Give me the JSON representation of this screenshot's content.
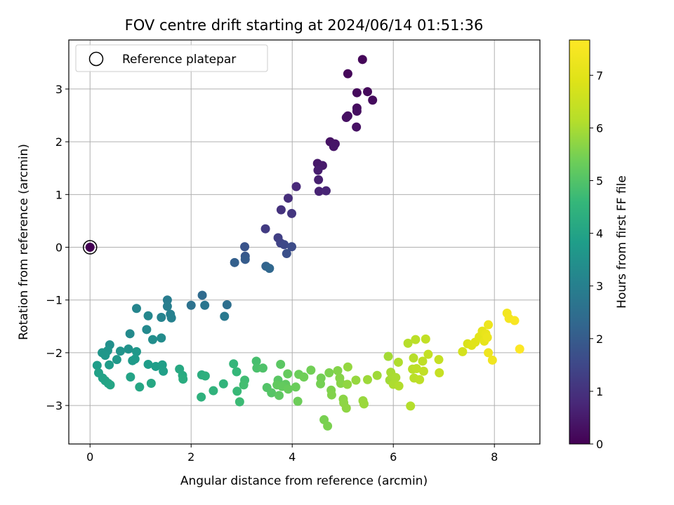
{
  "chart_data": {
    "type": "scatter",
    "title": "FOV centre drift starting at 2024/06/14 01:51:36",
    "xlabel": "Angular distance from reference (arcmin)",
    "ylabel": "Rotation from reference (arcmin)",
    "xlim": [
      -0.42,
      8.9
    ],
    "ylim": [
      -3.73,
      3.93
    ],
    "xticks": [
      0,
      2,
      4,
      6,
      8
    ],
    "yticks": [
      -3,
      -2,
      -1,
      0,
      1,
      2,
      3
    ],
    "grid": true,
    "legend": {
      "location": "upper-left",
      "entries": [
        "Reference platepar"
      ]
    },
    "reference_point": {
      "x": 0,
      "y": 0
    },
    "colorbar": {
      "label": "Hours from first FF file",
      "colormap": "viridis",
      "range": [
        0,
        7.67
      ],
      "ticks": [
        0,
        1,
        2,
        3,
        4,
        5,
        6,
        7
      ]
    },
    "series": [
      {
        "color_by": "hours",
        "points": [
          [
            5.39,
            3.56,
            0.1
          ],
          [
            5.1,
            3.29,
            0.12
          ],
          [
            5.49,
            2.95,
            0.15
          ],
          [
            5.28,
            2.93,
            0.17
          ],
          [
            5.59,
            2.79,
            0.2
          ],
          [
            5.28,
            2.64,
            0.22
          ],
          [
            5.28,
            2.58,
            0.25
          ],
          [
            5.1,
            2.49,
            0.27
          ],
          [
            5.07,
            2.46,
            0.3
          ],
          [
            5.27,
            2.28,
            0.32
          ],
          [
            4.75,
            2.0,
            0.35
          ],
          [
            4.85,
            1.96,
            0.38
          ],
          [
            4.82,
            1.91,
            0.4
          ],
          [
            4.5,
            1.59,
            0.45
          ],
          [
            4.6,
            1.55,
            0.5
          ],
          [
            4.51,
            1.46,
            0.55
          ],
          [
            4.52,
            1.28,
            0.6
          ],
          [
            4.53,
            1.06,
            0.65
          ],
          [
            4.67,
            1.07,
            0.7
          ],
          [
            4.08,
            1.15,
            0.8
          ],
          [
            3.92,
            0.93,
            0.9
          ],
          [
            3.78,
            0.71,
            1.0
          ],
          [
            3.99,
            0.64,
            1.1
          ],
          [
            3.47,
            0.35,
            1.2
          ],
          [
            3.72,
            0.18,
            1.3
          ],
          [
            3.77,
            0.08,
            1.4
          ],
          [
            3.84,
            0.05,
            1.5
          ],
          [
            3.99,
            0.01,
            1.6
          ],
          [
            3.89,
            -0.12,
            1.7
          ],
          [
            3.06,
            0.01,
            1.8
          ],
          [
            3.07,
            -0.17,
            1.9
          ],
          [
            3.07,
            -0.23,
            2.0
          ],
          [
            2.86,
            -0.29,
            2.1
          ],
          [
            3.48,
            -0.36,
            2.2
          ],
          [
            3.55,
            -0.4,
            2.3
          ],
          [
            2.22,
            -0.91,
            2.4
          ],
          [
            2.71,
            -1.09,
            2.5
          ],
          [
            2.0,
            -1.1,
            2.6
          ],
          [
            2.27,
            -1.1,
            2.7
          ],
          [
            2.66,
            -1.31,
            2.8
          ],
          [
            1.53,
            -1.0,
            2.9
          ],
          [
            1.53,
            -1.12,
            2.95
          ],
          [
            1.59,
            -1.27,
            3.0
          ],
          [
            1.61,
            -1.34,
            3.05
          ],
          [
            1.41,
            -1.33,
            3.1
          ],
          [
            0.92,
            -1.16,
            3.15
          ],
          [
            1.15,
            -1.3,
            3.2
          ],
          [
            1.12,
            -1.56,
            3.25
          ],
          [
            0.79,
            -1.64,
            3.3
          ],
          [
            1.41,
            -1.72,
            3.35
          ],
          [
            1.24,
            -1.75,
            3.4
          ],
          [
            0.39,
            -1.85,
            3.45
          ],
          [
            0.76,
            -1.93,
            3.5
          ],
          [
            0.6,
            -1.97,
            3.55
          ],
          [
            0.35,
            -1.96,
            3.6
          ],
          [
            0.24,
            -2.0,
            3.62
          ],
          [
            0.3,
            -2.05,
            3.65
          ],
          [
            0.92,
            -1.98,
            3.68
          ],
          [
            0.53,
            -2.13,
            3.7
          ],
          [
            0.84,
            -2.15,
            3.72
          ],
          [
            0.89,
            -2.12,
            3.75
          ],
          [
            0.38,
            -2.23,
            3.78
          ],
          [
            0.14,
            -2.24,
            3.8
          ],
          [
            1.15,
            -2.22,
            3.82
          ],
          [
            1.3,
            -2.26,
            3.85
          ],
          [
            1.43,
            -2.23,
            3.88
          ],
          [
            1.45,
            -2.35,
            3.9
          ],
          [
            0.17,
            -2.38,
            3.92
          ],
          [
            0.25,
            -2.48,
            3.95
          ],
          [
            0.3,
            -2.53,
            3.98
          ],
          [
            0.8,
            -2.46,
            4.0
          ],
          [
            0.36,
            -2.58,
            4.02
          ],
          [
            0.4,
            -2.61,
            4.05
          ],
          [
            0.98,
            -2.65,
            4.08
          ],
          [
            1.21,
            -2.58,
            4.1
          ],
          [
            1.77,
            -2.31,
            4.15
          ],
          [
            1.83,
            -2.43,
            4.2
          ],
          [
            1.84,
            -2.5,
            4.25
          ],
          [
            2.21,
            -2.42,
            4.3
          ],
          [
            2.28,
            -2.44,
            4.35
          ],
          [
            2.2,
            -2.84,
            4.4
          ],
          [
            2.44,
            -2.72,
            4.45
          ],
          [
            2.64,
            -2.59,
            4.5
          ],
          [
            2.84,
            -2.21,
            4.55
          ],
          [
            2.9,
            -2.36,
            4.6
          ],
          [
            2.91,
            -2.73,
            4.65
          ],
          [
            2.96,
            -2.93,
            4.7
          ],
          [
            3.06,
            -2.52,
            4.75
          ],
          [
            3.04,
            -2.61,
            4.8
          ],
          [
            3.29,
            -2.16,
            4.85
          ],
          [
            3.3,
            -2.29,
            4.9
          ],
          [
            3.42,
            -2.29,
            4.95
          ],
          [
            3.5,
            -2.66,
            5.0
          ],
          [
            3.59,
            -2.76,
            5.05
          ],
          [
            3.72,
            -2.52,
            5.1
          ],
          [
            3.77,
            -2.22,
            5.12
          ],
          [
            3.74,
            -2.81,
            5.15
          ],
          [
            3.87,
            -2.6,
            5.18
          ],
          [
            3.7,
            -2.61,
            5.2
          ],
          [
            3.8,
            -2.64,
            5.22
          ],
          [
            3.91,
            -2.4,
            5.25
          ],
          [
            3.92,
            -2.69,
            5.28
          ],
          [
            4.07,
            -2.65,
            5.3
          ],
          [
            4.13,
            -2.41,
            5.32
          ],
          [
            4.11,
            -2.92,
            5.35
          ],
          [
            4.23,
            -2.46,
            5.38
          ],
          [
            4.37,
            -2.33,
            5.4
          ],
          [
            4.57,
            -2.48,
            5.42
          ],
          [
            4.56,
            -2.59,
            5.45
          ],
          [
            4.63,
            -3.27,
            5.48
          ],
          [
            4.7,
            -3.39,
            5.5
          ],
          [
            4.73,
            -2.38,
            5.52
          ],
          [
            4.77,
            -2.71,
            5.55
          ],
          [
            4.78,
            -2.8,
            5.58
          ],
          [
            4.9,
            -2.34,
            5.6
          ],
          [
            4.94,
            -2.48,
            5.62
          ],
          [
            4.96,
            -2.58,
            5.65
          ],
          [
            5.01,
            -2.88,
            5.68
          ],
          [
            5.02,
            -2.95,
            5.7
          ],
          [
            5.07,
            -3.05,
            5.72
          ],
          [
            5.09,
            -2.6,
            5.75
          ],
          [
            5.1,
            -2.27,
            5.78
          ],
          [
            5.26,
            -2.52,
            5.8
          ],
          [
            5.4,
            -2.91,
            5.82
          ],
          [
            5.42,
            -2.97,
            5.85
          ],
          [
            5.49,
            -2.51,
            5.88
          ],
          [
            5.68,
            -2.43,
            5.9
          ],
          [
            5.93,
            -2.52,
            5.92
          ],
          [
            5.9,
            -2.07,
            5.95
          ],
          [
            5.95,
            -2.37,
            5.98
          ],
          [
            5.98,
            -2.44,
            6.0
          ],
          [
            6.05,
            -2.47,
            6.02
          ],
          [
            6.0,
            -2.6,
            6.05
          ],
          [
            6.1,
            -2.18,
            6.08
          ],
          [
            6.11,
            -2.63,
            6.1
          ],
          [
            6.34,
            -3.01,
            6.12
          ],
          [
            6.29,
            -1.82,
            6.15
          ],
          [
            6.4,
            -2.1,
            6.18
          ],
          [
            6.38,
            -2.31,
            6.2
          ],
          [
            6.41,
            -2.48,
            6.22
          ],
          [
            6.44,
            -1.75,
            6.25
          ],
          [
            6.46,
            -2.3,
            6.28
          ],
          [
            6.52,
            -2.51,
            6.3
          ],
          [
            6.58,
            -2.16,
            6.32
          ],
          [
            6.6,
            -2.35,
            6.35
          ],
          [
            6.64,
            -1.74,
            6.38
          ],
          [
            6.69,
            -2.03,
            6.4
          ],
          [
            6.9,
            -2.13,
            6.42
          ],
          [
            6.91,
            -2.38,
            6.45
          ],
          [
            7.37,
            -1.98,
            6.7
          ],
          [
            7.47,
            -1.83,
            6.8
          ],
          [
            7.55,
            -1.86,
            6.9
          ],
          [
            7.62,
            -1.8,
            6.95
          ],
          [
            7.7,
            -1.7,
            7.0
          ],
          [
            7.76,
            -1.59,
            7.05
          ],
          [
            7.8,
            -1.78,
            7.1
          ],
          [
            7.83,
            -1.64,
            7.15
          ],
          [
            7.86,
            -1.71,
            7.2
          ],
          [
            7.88,
            -1.47,
            7.25
          ],
          [
            7.88,
            -2.0,
            7.3
          ],
          [
            7.96,
            -2.14,
            7.35
          ],
          [
            8.25,
            -1.25,
            7.4
          ],
          [
            8.29,
            -1.35,
            7.45
          ],
          [
            8.4,
            -1.39,
            7.55
          ],
          [
            8.5,
            -1.93,
            7.65
          ]
        ]
      }
    ]
  }
}
